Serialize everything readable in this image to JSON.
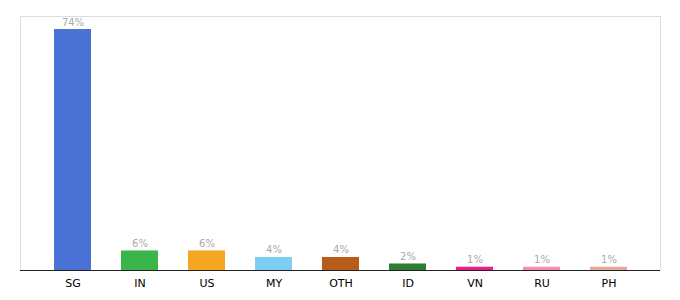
{
  "chart_data": {
    "type": "bar",
    "categories": [
      "SG",
      "IN",
      "US",
      "MY",
      "OTH",
      "ID",
      "VN",
      "RU",
      "PH"
    ],
    "values": [
      74,
      6,
      6,
      4,
      4,
      2,
      1,
      1,
      1
    ],
    "value_labels": [
      "74%",
      "6%",
      "6%",
      "4%",
      "4%",
      "2%",
      "1%",
      "1%",
      "1%"
    ],
    "colors": [
      "#4a72d4",
      "#3ab54a",
      "#f5a623",
      "#7ecef4",
      "#b85c1a",
      "#2e7d32",
      "#e91e8c",
      "#f48fb1",
      "#e8a898"
    ],
    "ylim": [
      0,
      78
    ],
    "data_labels": true,
    "tick_labels": "x"
  }
}
